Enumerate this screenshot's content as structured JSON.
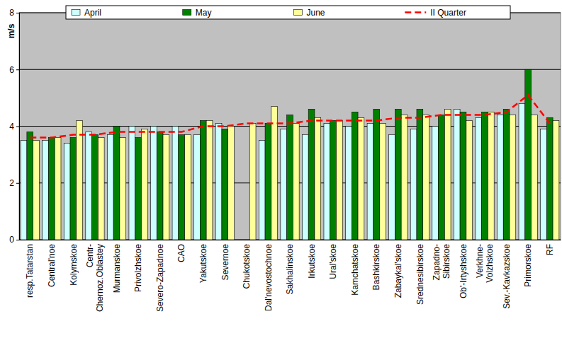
{
  "chart_data": {
    "type": "bar",
    "y_label": "m/s",
    "categories": [
      "resp.Tatarstan",
      "Central'noe",
      "Kolymskoe",
      "Centr-\nChernoz.Oblastey",
      "Murmanskoe",
      "Privolzhskoe",
      "Severo-Zapadnoe",
      "CAO",
      "Yakutskoe",
      "Severnoe",
      "Chukotskoe",
      "Dal'nevostochnoe",
      "Sakhalinskoe",
      "Irkutskoe",
      "Ural'skoe",
      "Kamchatskoe",
      "Bashkirskoe",
      "Zabaykal'skoe",
      "Srednesibirskoe",
      "Zapadno-\nSibirskoe",
      "Ob'-Irtyshskoe",
      "Verkhne-\nVolzhskoe",
      "Sev.-Kavkazskoe",
      "Primorskoe",
      "RF"
    ],
    "series": [
      {
        "name": "April",
        "color": "#ccffff",
        "values": [
          3.5,
          3.5,
          3.4,
          3.8,
          3.7,
          4.0,
          4.0,
          4.0,
          3.7,
          4.1,
          null,
          3.5,
          3.9,
          3.7,
          4.1,
          4.0,
          4.1,
          3.7,
          3.9,
          4.0,
          4.6,
          4.3,
          4.4,
          4.8,
          3.9
        ]
      },
      {
        "name": "May",
        "color": "#008000",
        "values": [
          3.8,
          3.6,
          3.6,
          3.7,
          4.0,
          3.6,
          3.8,
          3.7,
          4.2,
          3.9,
          null,
          4.1,
          4.4,
          4.6,
          4.2,
          4.5,
          4.6,
          4.6,
          4.6,
          4.4,
          4.5,
          4.5,
          4.6,
          6.0,
          4.3
        ]
      },
      {
        "name": "June",
        "color": "#ffff99",
        "values": [
          3.5,
          3.6,
          4.2,
          3.6,
          3.6,
          3.9,
          3.7,
          3.7,
          4.2,
          4.0,
          4.1,
          4.7,
          4.1,
          4.3,
          4.2,
          4.3,
          4.1,
          4.4,
          4.4,
          4.6,
          4.2,
          4.5,
          4.4,
          4.4,
          4.2
        ]
      },
      {
        "name": "II Quarter",
        "color": "#ff0000",
        "type": "line",
        "line_style": "dashed",
        "values": [
          3.6,
          3.6,
          3.7,
          3.7,
          3.8,
          3.8,
          3.8,
          3.8,
          4.0,
          4.0,
          4.1,
          4.1,
          4.1,
          4.2,
          4.2,
          4.2,
          4.2,
          4.3,
          4.3,
          4.4,
          4.4,
          4.4,
          4.5,
          5.1,
          4.1
        ]
      }
    ],
    "ylim": [
      0,
      8
    ],
    "yticks": [
      0,
      2,
      4,
      6,
      8
    ],
    "grid": true,
    "legend": "top"
  }
}
